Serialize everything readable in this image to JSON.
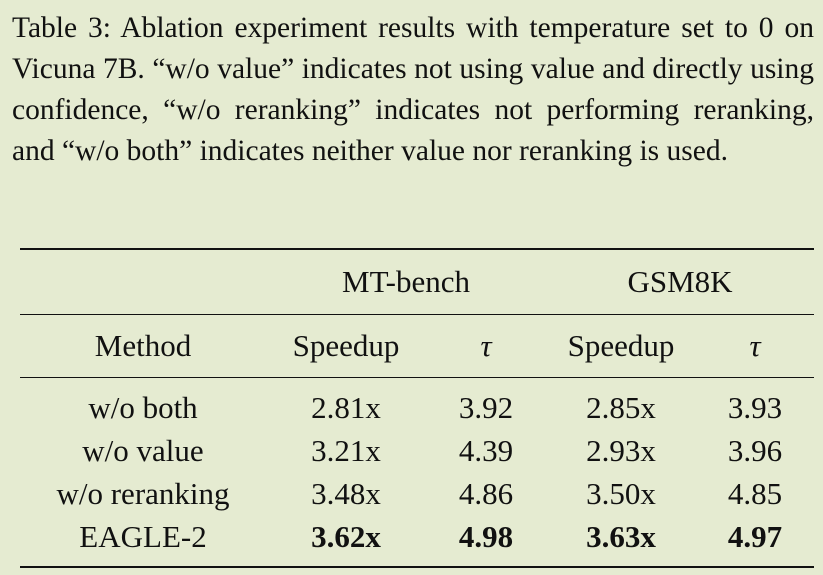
{
  "caption": "Table 3: Ablation experiment results with temperature set to 0 on Vicuna 7B. “w/o value” indicates not using value and directly using confidence, “w/o reranking” indicates not performing reranking, and “w/o both” indicates neither value nor reranking is used.",
  "table": {
    "groups": [
      "MT-bench",
      "GSM8K"
    ],
    "headers": [
      "Method",
      "Speedup",
      "τ",
      "Speedup",
      "τ"
    ],
    "rows": [
      {
        "method": "w/o both",
        "mt_speedup": "2.81x",
        "mt_tau": "3.92",
        "gsm_speedup": "2.85x",
        "gsm_tau": "3.93"
      },
      {
        "method": "w/o value",
        "mt_speedup": "3.21x",
        "mt_tau": "4.39",
        "gsm_speedup": "2.93x",
        "gsm_tau": "3.96"
      },
      {
        "method": "w/o reranking",
        "mt_speedup": "3.48x",
        "mt_tau": "4.86",
        "gsm_speedup": "3.50x",
        "gsm_tau": "4.85"
      },
      {
        "method": "EAGLE-2",
        "mt_speedup": "3.62x",
        "mt_tau": "4.98",
        "gsm_speedup": "3.63x",
        "gsm_tau": "4.97"
      }
    ]
  }
}
